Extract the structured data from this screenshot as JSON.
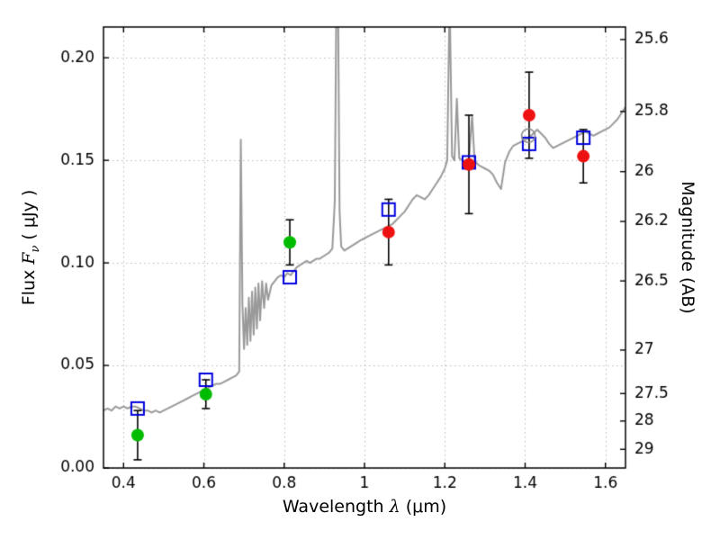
{
  "chart_data": {
    "type": "line",
    "title": "",
    "xlabel_prefix": "Wavelength  ",
    "xlabel_symbol": "λ",
    "xlabel_suffix": " (μm)",
    "ylabel_prefix": "Flux  ",
    "ylabel_symbol": "F",
    "ylabel_sub": "ν",
    "ylabel_suffix": "  ( μJy )",
    "y2label": "Magnitude (AB)",
    "xlim": [
      0.35,
      1.65
    ],
    "ylim": [
      0.0,
      0.215
    ],
    "grid": true,
    "x_ticks": [
      {
        "label": "0.4",
        "value": 0.4
      },
      {
        "label": "0.6",
        "value": 0.6
      },
      {
        "label": "0.8",
        "value": 0.8
      },
      {
        "label": "1",
        "value": 1.0
      },
      {
        "label": "1.2",
        "value": 1.2
      },
      {
        "label": "1.4",
        "value": 1.4
      },
      {
        "label": "1.6",
        "value": 1.6
      }
    ],
    "y_ticks": [
      {
        "label": "0.00",
        "value": 0.0
      },
      {
        "label": "0.05",
        "value": 0.05
      },
      {
        "label": "0.10",
        "value": 0.1
      },
      {
        "label": "0.15",
        "value": 0.15
      },
      {
        "label": "0.20",
        "value": 0.2
      }
    ],
    "y2_ticks": [
      {
        "label": "25.6",
        "value": 0.2089
      },
      {
        "label": "25.8",
        "value": 0.1738
      },
      {
        "label": "26",
        "value": 0.1445
      },
      {
        "label": "26.2",
        "value": 0.1202
      },
      {
        "label": "26.5",
        "value": 0.0912
      },
      {
        "label": "27",
        "value": 0.0575
      },
      {
        "label": "27.5",
        "value": 0.0363
      },
      {
        "label": "28",
        "value": 0.0229
      },
      {
        "label": "29",
        "value": 0.0091
      }
    ],
    "colors": {
      "spectrum": "#9a9a9a",
      "observed_short": "#00bc00",
      "observed_long": "#ee1111",
      "model": "#0000e0",
      "open_circle": "#8c8c8c",
      "errorbar": "#000000",
      "grid": "#b8b8b8",
      "axis": "#000000"
    },
    "series": [
      {
        "name": "model-spectrum",
        "type": "line",
        "color_key": "spectrum",
        "points": [
          [
            0.35,
            0.028
          ],
          [
            0.36,
            0.029
          ],
          [
            0.37,
            0.028
          ],
          [
            0.38,
            0.03
          ],
          [
            0.39,
            0.029
          ],
          [
            0.4,
            0.03
          ],
          [
            0.41,
            0.029
          ],
          [
            0.42,
            0.03
          ],
          [
            0.43,
            0.03
          ],
          [
            0.44,
            0.029
          ],
          [
            0.45,
            0.028
          ],
          [
            0.46,
            0.028
          ],
          [
            0.47,
            0.027
          ],
          [
            0.48,
            0.028
          ],
          [
            0.49,
            0.027
          ],
          [
            0.5,
            0.028
          ],
          [
            0.51,
            0.029
          ],
          [
            0.52,
            0.03
          ],
          [
            0.53,
            0.031
          ],
          [
            0.54,
            0.032
          ],
          [
            0.55,
            0.033
          ],
          [
            0.56,
            0.034
          ],
          [
            0.57,
            0.035
          ],
          [
            0.58,
            0.036
          ],
          [
            0.59,
            0.037
          ],
          [
            0.6,
            0.038
          ],
          [
            0.61,
            0.039
          ],
          [
            0.62,
            0.04
          ],
          [
            0.63,
            0.041
          ],
          [
            0.64,
            0.041
          ],
          [
            0.65,
            0.042
          ],
          [
            0.66,
            0.043
          ],
          [
            0.67,
            0.044
          ],
          [
            0.68,
            0.045
          ],
          [
            0.688,
            0.047
          ],
          [
            0.692,
            0.16
          ],
          [
            0.696,
            0.08
          ],
          [
            0.7,
            0.058
          ],
          [
            0.704,
            0.078
          ],
          [
            0.708,
            0.06
          ],
          [
            0.712,
            0.083
          ],
          [
            0.716,
            0.062
          ],
          [
            0.72,
            0.086
          ],
          [
            0.724,
            0.065
          ],
          [
            0.728,
            0.088
          ],
          [
            0.732,
            0.068
          ],
          [
            0.736,
            0.09
          ],
          [
            0.74,
            0.072
          ],
          [
            0.745,
            0.091
          ],
          [
            0.75,
            0.078
          ],
          [
            0.755,
            0.09
          ],
          [
            0.76,
            0.082
          ],
          [
            0.768,
            0.089
          ],
          [
            0.776,
            0.091
          ],
          [
            0.784,
            0.093
          ],
          [
            0.792,
            0.094
          ],
          [
            0.8,
            0.093
          ],
          [
            0.808,
            0.095
          ],
          [
            0.816,
            0.094
          ],
          [
            0.824,
            0.096
          ],
          [
            0.832,
            0.098
          ],
          [
            0.84,
            0.099
          ],
          [
            0.848,
            0.1
          ],
          [
            0.856,
            0.101
          ],
          [
            0.864,
            0.1
          ],
          [
            0.872,
            0.101
          ],
          [
            0.88,
            0.102
          ],
          [
            0.888,
            0.102
          ],
          [
            0.896,
            0.103
          ],
          [
            0.904,
            0.104
          ],
          [
            0.912,
            0.105
          ],
          [
            0.92,
            0.107
          ],
          [
            0.926,
            0.13
          ],
          [
            0.93,
            0.23
          ],
          [
            0.934,
            0.23
          ],
          [
            0.938,
            0.125
          ],
          [
            0.942,
            0.108
          ],
          [
            0.95,
            0.106
          ],
          [
            0.958,
            0.107
          ],
          [
            0.966,
            0.108
          ],
          [
            0.974,
            0.109
          ],
          [
            0.982,
            0.11
          ],
          [
            0.99,
            0.111
          ],
          [
            1.0,
            0.112
          ],
          [
            1.01,
            0.113
          ],
          [
            1.02,
            0.114
          ],
          [
            1.03,
            0.115
          ],
          [
            1.04,
            0.116
          ],
          [
            1.05,
            0.117
          ],
          [
            1.06,
            0.118
          ],
          [
            1.07,
            0.119
          ],
          [
            1.08,
            0.121
          ],
          [
            1.09,
            0.123
          ],
          [
            1.1,
            0.125
          ],
          [
            1.11,
            0.128
          ],
          [
            1.12,
            0.131
          ],
          [
            1.13,
            0.133
          ],
          [
            1.14,
            0.132
          ],
          [
            1.15,
            0.131
          ],
          [
            1.16,
            0.133
          ],
          [
            1.17,
            0.136
          ],
          [
            1.18,
            0.139
          ],
          [
            1.19,
            0.142
          ],
          [
            1.2,
            0.146
          ],
          [
            1.206,
            0.15
          ],
          [
            1.212,
            0.23
          ],
          [
            1.218,
            0.152
          ],
          [
            1.224,
            0.15
          ],
          [
            1.23,
            0.18
          ],
          [
            1.236,
            0.151
          ],
          [
            1.244,
            0.15
          ],
          [
            1.252,
            0.149
          ],
          [
            1.26,
            0.15
          ],
          [
            1.268,
            0.172
          ],
          [
            1.274,
            0.15
          ],
          [
            1.282,
            0.148
          ],
          [
            1.29,
            0.147
          ],
          [
            1.3,
            0.146
          ],
          [
            1.31,
            0.145
          ],
          [
            1.32,
            0.143
          ],
          [
            1.33,
            0.139
          ],
          [
            1.34,
            0.136
          ],
          [
            1.35,
            0.149
          ],
          [
            1.36,
            0.154
          ],
          [
            1.37,
            0.157
          ],
          [
            1.38,
            0.158
          ],
          [
            1.39,
            0.159
          ],
          [
            1.4,
            0.16
          ],
          [
            1.41,
            0.161
          ],
          [
            1.42,
            0.163
          ],
          [
            1.43,
            0.165
          ],
          [
            1.44,
            0.163
          ],
          [
            1.45,
            0.161
          ],
          [
            1.46,
            0.158
          ],
          [
            1.47,
            0.156
          ],
          [
            1.48,
            0.157
          ],
          [
            1.49,
            0.158
          ],
          [
            1.5,
            0.159
          ],
          [
            1.51,
            0.16
          ],
          [
            1.52,
            0.161
          ],
          [
            1.53,
            0.162
          ],
          [
            1.54,
            0.163
          ],
          [
            1.55,
            0.164
          ],
          [
            1.56,
            0.163
          ],
          [
            1.57,
            0.162
          ],
          [
            1.58,
            0.163
          ],
          [
            1.59,
            0.164
          ],
          [
            1.6,
            0.165
          ],
          [
            1.61,
            0.166
          ],
          [
            1.62,
            0.168
          ],
          [
            1.63,
            0.17
          ],
          [
            1.64,
            0.173
          ],
          [
            1.65,
            0.176
          ]
        ]
      },
      {
        "name": "model-photometry-squares",
        "type": "scatter",
        "marker": "open-square",
        "color_key": "model",
        "points": [
          {
            "x": 0.435,
            "y": 0.029
          },
          {
            "x": 0.605,
            "y": 0.043
          },
          {
            "x": 0.814,
            "y": 0.093
          },
          {
            "x": 1.06,
            "y": 0.126
          },
          {
            "x": 1.26,
            "y": 0.149
          },
          {
            "x": 1.41,
            "y": 0.158
          },
          {
            "x": 1.545,
            "y": 0.161
          }
        ]
      },
      {
        "name": "model-photometry-open-circle",
        "type": "scatter",
        "marker": "open-circle",
        "color_key": "open_circle",
        "points": [
          {
            "x": 1.408,
            "y": 0.162
          }
        ]
      },
      {
        "name": "observed-photometry-optical",
        "type": "scatter",
        "marker": "circle",
        "color_key": "observed_short",
        "points": [
          {
            "x": 0.435,
            "y": 0.016,
            "yerr": 0.012
          },
          {
            "x": 0.605,
            "y": 0.036,
            "yerr": 0.007
          },
          {
            "x": 0.814,
            "y": 0.11,
            "yerr": 0.011
          }
        ]
      },
      {
        "name": "observed-photometry-nearIR",
        "type": "scatter",
        "marker": "circle",
        "color_key": "observed_long",
        "points": [
          {
            "x": 1.06,
            "y": 0.115,
            "yerr": 0.016
          },
          {
            "x": 1.26,
            "y": 0.148,
            "yerr": 0.024
          },
          {
            "x": 1.41,
            "y": 0.172,
            "yerr": 0.021
          },
          {
            "x": 1.545,
            "y": 0.152,
            "yerr": 0.013
          }
        ]
      }
    ]
  }
}
